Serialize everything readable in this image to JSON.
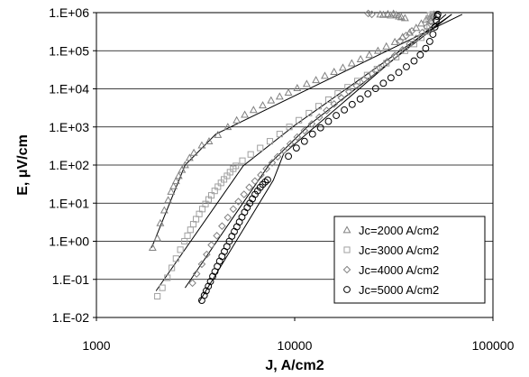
{
  "chart_data": {
    "type": "scatter",
    "xlabel": "J, A/cm2",
    "ylabel": "E, μV/cm",
    "x_scale": "log",
    "y_scale": "log",
    "xlim": [
      1000,
      100000
    ],
    "ylim": [
      0.01,
      1000000
    ],
    "x_ticks": [
      "1000",
      "10000",
      "100000"
    ],
    "y_ticks": [
      "1.E-02",
      "1.E-01",
      "1.E+00",
      "1.E+01",
      "1.E+02",
      "1.E+03",
      "1.E+04",
      "1.E+05",
      "1.E+06"
    ],
    "grid": "horizontal",
    "legend_position": "bottom-right",
    "series": [
      {
        "name": "Jc=2000 A/cm2",
        "marker": "triangle",
        "color": "#808080",
        "points": [
          [
            1920,
            0.68
          ],
          [
            2030,
            1.2
          ],
          [
            2100,
            3.0
          ],
          [
            2200,
            6.5
          ],
          [
            2300,
            12
          ],
          [
            2380,
            20
          ],
          [
            2450,
            28
          ],
          [
            2520,
            38
          ],
          [
            2600,
            52
          ],
          [
            2700,
            75
          ],
          [
            2800,
            100
          ],
          [
            2950,
            155
          ],
          [
            3100,
            210
          ],
          [
            3400,
            330
          ],
          [
            3700,
            420
          ],
          [
            4100,
            620
          ],
          [
            4600,
            1000
          ],
          [
            5100,
            1500
          ],
          [
            5600,
            2100
          ],
          [
            6200,
            2800
          ],
          [
            6900,
            3700
          ],
          [
            7600,
            5000
          ],
          [
            8400,
            6300
          ],
          [
            9300,
            8000
          ],
          [
            10300,
            10500
          ],
          [
            11500,
            13500
          ],
          [
            12800,
            17000
          ],
          [
            14200,
            22000
          ],
          [
            15800,
            28000
          ],
          [
            17500,
            36000
          ],
          [
            19400,
            47000
          ],
          [
            21500,
            60000
          ],
          [
            23800,
            78000
          ],
          [
            26300,
            100000
          ],
          [
            29000,
            130000
          ],
          [
            32000,
            170000
          ],
          [
            35000,
            230000
          ],
          [
            38000,
            300000
          ],
          [
            41000,
            400000
          ],
          [
            43500,
            520000
          ],
          [
            46000,
            650000
          ],
          [
            48500,
            800000
          ],
          [
            50500,
            900000
          ],
          [
            27000,
            900000
          ],
          [
            28000,
            880000
          ],
          [
            29500,
            920000
          ],
          [
            30500,
            850000
          ],
          [
            31500,
            940000
          ],
          [
            32500,
            870000
          ],
          [
            33500,
            800000
          ],
          [
            34500,
            760000
          ],
          [
            36000,
            720000
          ]
        ]
      },
      {
        "name": "Jc=3000 A/cm2",
        "marker": "square",
        "color": "#a0a0a0",
        "points": [
          [
            2030,
            0.036
          ],
          [
            2150,
            0.06
          ],
          [
            2280,
            0.11
          ],
          [
            2400,
            0.2
          ],
          [
            2520,
            0.35
          ],
          [
            2650,
            0.6
          ],
          [
            2780,
            1.0
          ],
          [
            2880,
            1.4
          ],
          [
            2980,
            2.0
          ],
          [
            3080,
            2.8
          ],
          [
            3180,
            3.8
          ],
          [
            3300,
            5.2
          ],
          [
            3420,
            7.0
          ],
          [
            3550,
            9.5
          ],
          [
            3680,
            12.5
          ],
          [
            3800,
            16
          ],
          [
            3950,
            21
          ],
          [
            4100,
            27
          ],
          [
            4250,
            34
          ],
          [
            4400,
            42
          ],
          [
            4560,
            52
          ],
          [
            4720,
            65
          ],
          [
            4900,
            80
          ],
          [
            5050,
            95
          ],
          [
            5450,
            130
          ],
          [
            6000,
            190
          ],
          [
            6700,
            280
          ],
          [
            7500,
            420
          ],
          [
            8400,
            650
          ],
          [
            9400,
            1000
          ],
          [
            10500,
            1500
          ],
          [
            11800,
            2300
          ],
          [
            13200,
            3500
          ],
          [
            14800,
            5200
          ],
          [
            16500,
            7600
          ],
          [
            18500,
            11000
          ],
          [
            20700,
            16000
          ],
          [
            23200,
            23000
          ],
          [
            26000,
            33000
          ],
          [
            29000,
            47000
          ],
          [
            32500,
            68000
          ],
          [
            36000,
            100000
          ],
          [
            40000,
            150000
          ],
          [
            43500,
            220000
          ],
          [
            46500,
            320000
          ],
          [
            48000,
            450000
          ],
          [
            48800,
            600000
          ],
          [
            49300,
            750000
          ],
          [
            49700,
            900000
          ],
          [
            48200,
            850000
          ],
          [
            47500,
            700000
          ]
        ]
      },
      {
        "name": "Jc=4000 A/cm2",
        "marker": "diamond",
        "color": "#808080",
        "points": [
          [
            3050,
            0.08
          ],
          [
            3200,
            0.14
          ],
          [
            3400,
            0.25
          ],
          [
            3600,
            0.45
          ],
          [
            3800,
            0.8
          ],
          [
            4050,
            1.4
          ],
          [
            4300,
            2.5
          ],
          [
            4600,
            4.2
          ],
          [
            4900,
            7.0
          ],
          [
            5200,
            11
          ],
          [
            5550,
            17
          ],
          [
            5900,
            26
          ],
          [
            6300,
            38
          ],
          [
            6750,
            55
          ],
          [
            7200,
            80
          ],
          [
            7700,
            115
          ],
          [
            8200,
            165
          ],
          [
            8800,
            240
          ],
          [
            9500,
            360
          ],
          [
            10300,
            540
          ],
          [
            11200,
            800
          ],
          [
            12200,
            1200
          ],
          [
            13300,
            1800
          ],
          [
            14500,
            2700
          ],
          [
            15800,
            4000
          ],
          [
            17200,
            5800
          ],
          [
            18800,
            8400
          ],
          [
            20500,
            12000
          ],
          [
            22400,
            17500
          ],
          [
            24500,
            25000
          ],
          [
            26800,
            36000
          ],
          [
            29300,
            52000
          ],
          [
            32000,
            75000
          ],
          [
            35000,
            105000
          ],
          [
            38000,
            150000
          ],
          [
            41000,
            210000
          ],
          [
            44000,
            300000
          ],
          [
            46500,
            420000
          ],
          [
            48500,
            580000
          ],
          [
            50000,
            780000
          ],
          [
            23500,
            950000
          ],
          [
            24500,
            900000
          ],
          [
            34000,
            180000
          ],
          [
            36500,
            250000
          ],
          [
            39000,
            330000
          ]
        ]
      },
      {
        "name": "Jc=5000 A/cm2",
        "marker": "circle",
        "color": "#000000",
        "points": [
          [
            3400,
            0.028
          ],
          [
            3500,
            0.038
          ],
          [
            3580,
            0.05
          ],
          [
            3670,
            0.066
          ],
          [
            3760,
            0.088
          ],
          [
            3860,
            0.12
          ],
          [
            3960,
            0.16
          ],
          [
            4070,
            0.22
          ],
          [
            4180,
            0.3
          ],
          [
            4300,
            0.4
          ],
          [
            4420,
            0.54
          ],
          [
            4550,
            0.73
          ],
          [
            4680,
            1.0
          ],
          [
            4820,
            1.35
          ],
          [
            4960,
            1.8
          ],
          [
            5110,
            2.4
          ],
          [
            5260,
            3.2
          ],
          [
            5420,
            4.3
          ],
          [
            5590,
            5.8
          ],
          [
            5760,
            7.7
          ],
          [
            5940,
            10
          ],
          [
            6120,
            13
          ],
          [
            6310,
            17
          ],
          [
            6500,
            21
          ],
          [
            6700,
            26
          ],
          [
            6900,
            31
          ],
          [
            7100,
            36
          ],
          [
            7300,
            41
          ],
          [
            9300,
            170
          ],
          [
            10200,
            280
          ],
          [
            11200,
            420
          ],
          [
            12300,
            650
          ],
          [
            13500,
            950
          ],
          [
            14800,
            1400
          ],
          [
            16200,
            2000
          ],
          [
            17800,
            2800
          ],
          [
            19500,
            3900
          ],
          [
            21400,
            5400
          ],
          [
            23400,
            7400
          ],
          [
            25600,
            10200
          ],
          [
            28000,
            14000
          ],
          [
            30600,
            19500
          ],
          [
            33500,
            27000
          ],
          [
            36600,
            38000
          ],
          [
            40000,
            54000
          ],
          [
            43000,
            78000
          ],
          [
            45800,
            115000
          ],
          [
            48000,
            175000
          ],
          [
            49800,
            270000
          ],
          [
            51000,
            420000
          ],
          [
            51800,
            620000
          ],
          [
            52300,
            800000
          ],
          [
            52700,
            900000
          ]
        ]
      }
    ],
    "fit_lines": [
      [
        [
          1900,
          0.68
        ],
        [
          2800,
          100
        ],
        [
          4000,
          650
        ],
        [
          70000,
          900000
        ]
      ],
      [
        [
          2000,
          0.05
        ],
        [
          5500,
          95
        ],
        [
          10000,
          1100
        ],
        [
          62000,
          900000
        ]
      ],
      [
        [
          2800,
          0.06
        ],
        [
          7500,
          110
        ],
        [
          12000,
          1200
        ],
        [
          62000,
          900000
        ]
      ],
      [
        [
          3300,
          0.026
        ],
        [
          7800,
          40
        ],
        [
          8800,
          200
        ],
        [
          58000,
          900000
        ]
      ]
    ]
  }
}
